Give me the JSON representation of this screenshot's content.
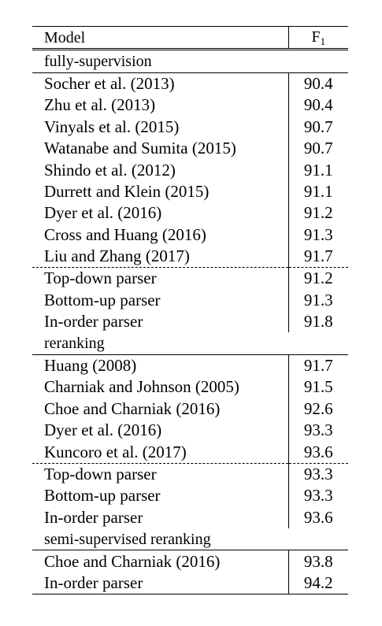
{
  "table": {
    "header": {
      "model": "Model",
      "metric": "F",
      "metric_sub": "1"
    },
    "sections": [
      {
        "title": "fully-supervision",
        "groups": [
          [
            {
              "model": "Socher et al. (2013)",
              "f1": "90.4",
              "best": false
            },
            {
              "model": "Zhu et al. (2013)",
              "f1": "90.4",
              "best": false
            },
            {
              "model": "Vinyals et al. (2015)",
              "f1": "90.7",
              "best": false
            },
            {
              "model": "Watanabe and Sumita (2015)",
              "f1": "90.7",
              "best": false
            },
            {
              "model": "Shindo et al. (2012)",
              "f1": "91.1",
              "best": false
            },
            {
              "model": "Durrett and Klein (2015)",
              "f1": "91.1",
              "best": false
            },
            {
              "model": "Dyer et al. (2016)",
              "f1": "91.2",
              "best": false
            },
            {
              "model": "Cross and Huang (2016)",
              "f1": "91.3",
              "best": false
            },
            {
              "model": "Liu and Zhang (2017)",
              "f1": "91.7",
              "best": false
            }
          ],
          [
            {
              "model": "Top-down parser",
              "f1": "91.2",
              "best": false
            },
            {
              "model": "Bottom-up parser",
              "f1": "91.3",
              "best": false
            },
            {
              "model": "In-order parser",
              "f1": "91.8",
              "best": true
            }
          ]
        ]
      },
      {
        "title": "reranking",
        "groups": [
          [
            {
              "model": "Huang (2008)",
              "f1": "91.7",
              "best": false
            },
            {
              "model": "Charniak and Johnson (2005)",
              "f1": "91.5",
              "best": false
            },
            {
              "model": "Choe and Charniak (2016)",
              "f1": "92.6",
              "best": false
            },
            {
              "model": "Dyer et al. (2016)",
              "f1": "93.3",
              "best": false
            },
            {
              "model": "Kuncoro et al. (2017)",
              "f1": "93.6",
              "best": true
            }
          ],
          [
            {
              "model": "Top-down parser",
              "f1": "93.3",
              "best": false
            },
            {
              "model": "Bottom-up parser",
              "f1": "93.3",
              "best": false
            },
            {
              "model": "In-order parser",
              "f1": "93.6",
              "best": true
            }
          ]
        ]
      },
      {
        "title": "semi-supervised reranking",
        "groups": [
          [
            {
              "model": "Choe and Charniak (2016)",
              "f1": "93.8",
              "best": false
            },
            {
              "model": "In-order parser",
              "f1": "94.2",
              "best": true
            }
          ]
        ]
      }
    ]
  }
}
